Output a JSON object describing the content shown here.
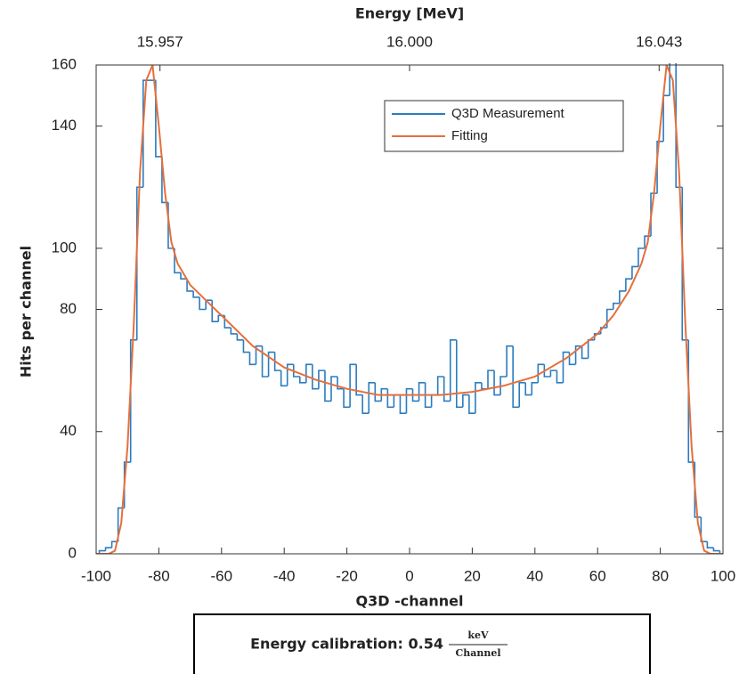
{
  "chart_data": {
    "type": "line",
    "x2label": "Energy [MeV]",
    "xlabel": "Q3D -channel",
    "ylabel": "Hits per channel",
    "xlim": [
      -100,
      100
    ],
    "xticks": [
      -100,
      -80,
      -60,
      -40,
      -20,
      0,
      20,
      40,
      60,
      80,
      100
    ],
    "x2lim": [
      15.946,
      16.054
    ],
    "x2ticks": [
      15.957,
      {
        "value": 16,
        "label": "16.000"
      },
      16.043
    ],
    "ylim": [
      0,
      160
    ],
    "yticks": [
      0,
      40,
      80,
      100,
      140,
      160
    ],
    "grid": false,
    "legend": "upper right",
    "series": [
      {
        "name": "Q3D Measurement",
        "color": "#2b7cc0",
        "step": true,
        "x": [
          -100,
          -98,
          -96,
          -94,
          -92,
          -90,
          -88,
          -86,
          -84,
          -82,
          -80,
          -78,
          -76,
          -74,
          -72,
          -70,
          -68,
          -66,
          -64,
          -62,
          -60,
          -58,
          -56,
          -54,
          -52,
          -50,
          -48,
          -46,
          -44,
          -42,
          -40,
          -38,
          -36,
          -34,
          -32,
          -30,
          -28,
          -26,
          -24,
          -22,
          -20,
          -18,
          -16,
          -14,
          -12,
          -10,
          -8,
          -6,
          -4,
          -2,
          0,
          2,
          4,
          6,
          8,
          10,
          12,
          14,
          16,
          18,
          20,
          22,
          24,
          26,
          28,
          30,
          32,
          34,
          36,
          38,
          40,
          42,
          44,
          46,
          48,
          50,
          52,
          54,
          56,
          58,
          60,
          62,
          64,
          66,
          68,
          70,
          72,
          74,
          76,
          78,
          80,
          82,
          84,
          86,
          88,
          90,
          92,
          94,
          96,
          98,
          100
        ],
        "values": [
          0,
          1,
          2,
          4,
          15,
          30,
          70,
          120,
          155,
          155,
          130,
          115,
          100,
          92,
          90,
          86,
          84,
          80,
          83,
          76,
          78,
          74,
          72,
          70,
          66,
          62,
          68,
          58,
          66,
          60,
          55,
          62,
          58,
          56,
          62,
          54,
          60,
          50,
          58,
          54,
          48,
          62,
          52,
          46,
          56,
          50,
          54,
          48,
          52,
          46,
          54,
          50,
          56,
          48,
          52,
          58,
          50,
          70,
          48,
          52,
          46,
          56,
          54,
          60,
          52,
          58,
          68,
          48,
          56,
          52,
          56,
          62,
          58,
          60,
          56,
          66,
          62,
          68,
          64,
          70,
          72,
          74,
          80,
          82,
          86,
          90,
          94,
          100,
          104,
          118,
          135,
          150,
          162,
          120,
          70,
          30,
          12,
          4,
          2,
          1,
          0
        ]
      },
      {
        "name": "Fitting",
        "color": "#e5703c",
        "step": false,
        "x": [
          -100,
          -96,
          -94,
          -92,
          -90,
          -88,
          -86,
          -84,
          -82,
          -80,
          -78,
          -76,
          -74,
          -70,
          -65,
          -60,
          -55,
          -50,
          -40,
          -30,
          -20,
          -10,
          0,
          10,
          20,
          30,
          40,
          50,
          60,
          65,
          70,
          74,
          76,
          78,
          80,
          82,
          84,
          86,
          88,
          90,
          92,
          94,
          96,
          100
        ],
        "values": [
          0,
          0,
          1,
          10,
          35,
          75,
          125,
          155,
          160,
          140,
          118,
          102,
          95,
          88,
          83,
          78,
          73,
          68,
          61,
          57,
          54,
          52,
          52,
          52,
          53,
          55,
          58,
          64,
          72,
          78,
          86,
          95,
          102,
          118,
          140,
          160,
          155,
          125,
          75,
          35,
          10,
          1,
          0,
          0
        ]
      }
    ],
    "annotation": {
      "text": "Energy calibration: 0.54",
      "numerator": "keV",
      "denominator": "Channel"
    }
  }
}
